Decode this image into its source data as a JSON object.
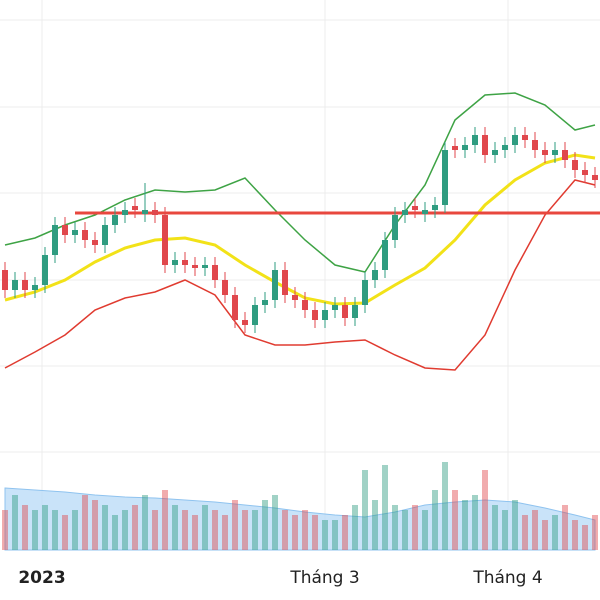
{
  "chart_data": {
    "type": "candlestick",
    "open": [
      45,
      40,
      42.5,
      40,
      41.25,
      48.75,
      56.25,
      53.75,
      55,
      52.5,
      51.25,
      56.25,
      58.75,
      61,
      59,
      60,
      58.75,
      46.25,
      47.5,
      46.25,
      45.5,
      46.25,
      42.5,
      38.75,
      32.5,
      31.25,
      36.25,
      37.5,
      45,
      38.75,
      37.5,
      35,
      32.5,
      35,
      36.25,
      33,
      36.25,
      42.5,
      45,
      52.5,
      58.75,
      61,
      59,
      60,
      61.25,
      76,
      75,
      76.25,
      78.75,
      73.75,
      75,
      76.25,
      78.75,
      77.5,
      75,
      73.75,
      75,
      72.5,
      70,
      68.75
    ],
    "high": [
      47,
      44.5,
      44.5,
      43.25,
      50.75,
      58.25,
      58.25,
      57,
      57,
      54.5,
      58.25,
      60.75,
      62,
      63,
      66.75,
      62,
      60.75,
      49.5,
      49.5,
      48.25,
      48.25,
      48.25,
      44.5,
      40.75,
      34.5,
      38.25,
      39.5,
      47,
      47,
      40.75,
      39.5,
      37,
      37,
      38.25,
      38.25,
      38.25,
      44.5,
      47,
      54.5,
      60.75,
      62,
      63,
      62,
      63.25,
      77,
      78,
      78.25,
      80.75,
      80.75,
      77,
      78.25,
      80.75,
      80.75,
      79.5,
      77,
      77,
      77,
      74.5,
      72,
      70.75
    ],
    "low": [
      38,
      38,
      38,
      38,
      39.25,
      46.75,
      51.75,
      51.75,
      50.5,
      49.25,
      49.25,
      54.25,
      56.75,
      58,
      57,
      56.75,
      44.25,
      44.25,
      44.25,
      43.5,
      43.5,
      40.5,
      36.75,
      30.5,
      29.25,
      29.25,
      34.25,
      35.5,
      36.75,
      35.5,
      33,
      30.5,
      30.5,
      33,
      31,
      31,
      34.25,
      40.5,
      43,
      50.5,
      56.75,
      58,
      57,
      58,
      59.25,
      73,
      73,
      74.25,
      71.75,
      71.75,
      73,
      74.25,
      75.5,
      73,
      71.75,
      71.75,
      70.5,
      68,
      66.75,
      65.5
    ],
    "close": [
      40,
      42.5,
      40,
      41.25,
      48.75,
      56.25,
      53.75,
      55,
      52.5,
      51.25,
      56.25,
      58.75,
      60,
      60,
      60,
      58.75,
      46.25,
      47.5,
      46.25,
      45.5,
      46.25,
      42.5,
      38.75,
      32.5,
      31.25,
      36.25,
      37.5,
      45,
      38.75,
      37.5,
      35,
      32.5,
      35,
      36.25,
      33,
      36.25,
      42.5,
      45,
      52.5,
      58.75,
      60,
      60,
      60,
      61.25,
      75,
      75,
      76.25,
      78.75,
      73.75,
      75,
      76.25,
      78.75,
      77.5,
      75,
      73.75,
      75,
      72.5,
      70,
      68.75,
      67.5
    ],
    "volume": [
      40,
      55,
      45,
      40,
      45,
      40,
      35,
      40,
      55,
      50,
      45,
      35,
      40,
      45,
      55,
      40,
      60,
      45,
      40,
      35,
      45,
      40,
      35,
      50,
      40,
      40,
      50,
      55,
      40,
      35,
      40,
      35,
      30,
      30,
      35,
      45,
      80,
      50,
      85,
      45,
      40,
      45,
      40,
      60,
      88,
      60,
      50,
      55,
      80,
      45,
      40,
      50,
      35,
      40,
      30,
      35,
      45,
      30,
      25,
      35
    ],
    "band_x": [
      0,
      3,
      6,
      9,
      12,
      15,
      18,
      21,
      24,
      27,
      30,
      33,
      36,
      39,
      42,
      45,
      48,
      51,
      54,
      57,
      59
    ],
    "middle_band": [
      37.5,
      39.5,
      42.5,
      47,
      50.5,
      52.5,
      53,
      51.25,
      46.25,
      42,
      38,
      36.5,
      36.75,
      41.25,
      45.5,
      52.5,
      61.25,
      67.5,
      71.75,
      73.75,
      73
    ],
    "upper_band": [
      51.25,
      53,
      56.25,
      58.75,
      62.5,
      65,
      64.5,
      65,
      68,
      60,
      52.5,
      46.25,
      44.5,
      56.25,
      66.25,
      82.5,
      88.75,
      89.25,
      86.25,
      80,
      81.25
    ],
    "lower_band": [
      20.5,
      24.5,
      28.75,
      35,
      38,
      39.5,
      42.5,
      38.75,
      28.75,
      26.25,
      26.25,
      27,
      27.5,
      23.75,
      20.5,
      20,
      28.75,
      45,
      58.75,
      67.5,
      66.25
    ],
    "volume_ma": [
      62,
      60,
      58,
      55,
      53,
      52,
      50,
      48,
      45,
      42,
      38,
      35,
      33,
      38,
      45,
      48,
      50,
      48,
      42,
      35,
      30
    ],
    "resistance": {
      "value": 59.25,
      "start": 7
    },
    "up_color": "#2f9c80",
    "down_color": "#e0474c",
    "ylim": [
      0,
      112.5
    ],
    "volume_ylim": [
      0,
      110
    ],
    "xticks": [
      {
        "value": 3.7,
        "label": "2023"
      },
      {
        "value": 32,
        "label": "Tháng 3"
      },
      {
        "value": 50.3,
        "label": "Tháng 4"
      }
    ]
  }
}
